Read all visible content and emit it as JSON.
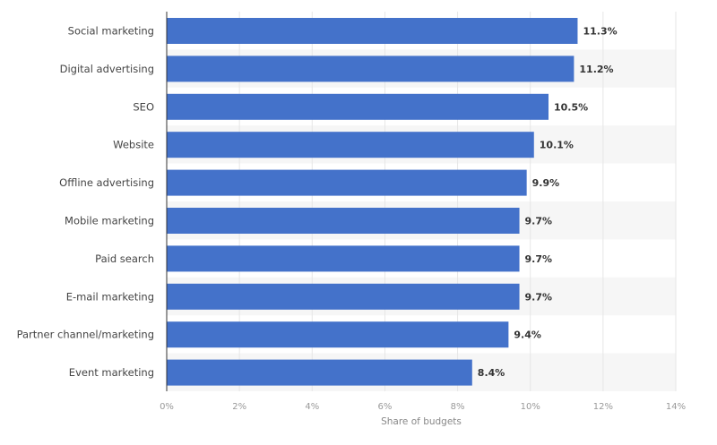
{
  "chart_data": {
    "type": "bar",
    "orientation": "horizontal",
    "categories": [
      "Social marketing",
      "Digital advertising",
      "SEO",
      "Website",
      "Offline advertising",
      "Mobile marketing",
      "Paid search",
      "E-mail marketing",
      "Partner channel/marketing",
      "Event marketing"
    ],
    "values": [
      11.3,
      11.2,
      10.5,
      10.1,
      9.9,
      9.7,
      9.7,
      9.7,
      9.4,
      8.4
    ],
    "value_labels": [
      "11.3%",
      "11.2%",
      "10.5%",
      "10.1%",
      "9.9%",
      "9.7%",
      "9.7%",
      "9.7%",
      "9.4%",
      "8.4%"
    ],
    "xlabel": "Share of budgets",
    "xlim": [
      0,
      14
    ],
    "xticks": [
      0,
      2,
      4,
      6,
      8,
      10,
      12,
      14
    ],
    "xtick_labels": [
      "0%",
      "2%",
      "4%",
      "6%",
      "8%",
      "10%",
      "12%",
      "14%"
    ],
    "grid": true,
    "bar_color": "#4472ca"
  }
}
